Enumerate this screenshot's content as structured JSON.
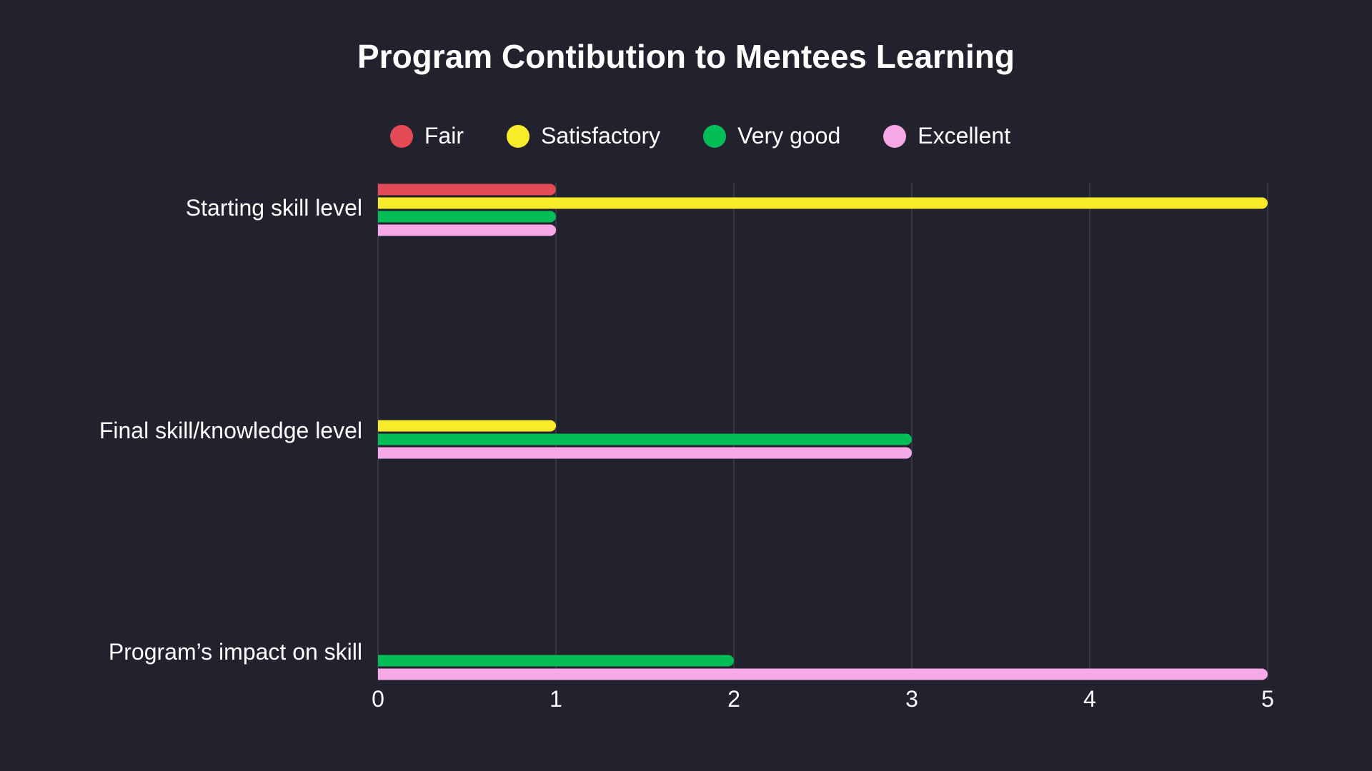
{
  "chart_data": {
    "type": "bar",
    "orientation": "horizontal",
    "title": "Program Contibution to Mentees Learning",
    "categories": [
      "Starting skill level",
      "Final skill/knowledge level",
      "Program’s impact on skill"
    ],
    "series": [
      {
        "name": "Fair",
        "color": "#e34a55",
        "values": [
          1,
          0,
          0
        ]
      },
      {
        "name": "Satisfactory",
        "color": "#f8ec2a",
        "values": [
          5,
          1,
          0
        ]
      },
      {
        "name": "Very good",
        "color": "#03bd57",
        "values": [
          1,
          3,
          2
        ]
      },
      {
        "name": "Excellent",
        "color": "#f7a8e6",
        "values": [
          1,
          3,
          5
        ]
      }
    ],
    "xlim": [
      0,
      5
    ],
    "xticks": [
      "0",
      "1",
      "2",
      "3",
      "4",
      "5"
    ],
    "grid": true,
    "legend_position": "top"
  }
}
